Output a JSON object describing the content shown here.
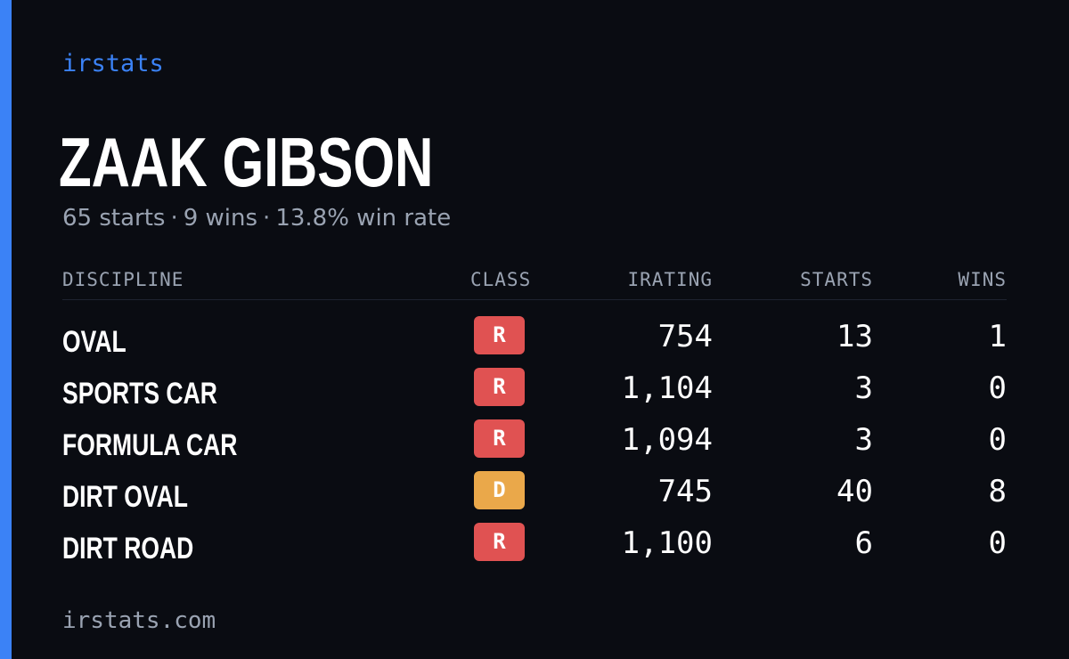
{
  "brand": "irstats",
  "driver": {
    "name": "ZAAK GIBSON",
    "starts": "65 starts",
    "wins": "9 wins",
    "win_rate": "13.8% win rate",
    "separator": "·"
  },
  "table": {
    "headers": {
      "discipline": "DISCIPLINE",
      "class": "CLASS",
      "irating": "IRATING",
      "starts": "STARTS",
      "wins": "WINS"
    },
    "rows": [
      {
        "discipline": "OVAL",
        "class": "R",
        "irating": "754",
        "starts": "13",
        "wins": "1"
      },
      {
        "discipline": "SPORTS CAR",
        "class": "R",
        "irating": "1,104",
        "starts": "3",
        "wins": "0"
      },
      {
        "discipline": "FORMULA CAR",
        "class": "R",
        "irating": "1,094",
        "starts": "3",
        "wins": "0"
      },
      {
        "discipline": "DIRT OVAL",
        "class": "D",
        "irating": "745",
        "starts": "40",
        "wins": "8"
      },
      {
        "discipline": "DIRT ROAD",
        "class": "R",
        "irating": "1,100",
        "starts": "6",
        "wins": "0"
      }
    ]
  },
  "footer": "irstats.com",
  "colors": {
    "background": "#0a0c12",
    "accent": "#3b82f6",
    "muted_text": "#9aa3b2",
    "class_r": "#e05252",
    "class_d": "#eaa84a"
  }
}
